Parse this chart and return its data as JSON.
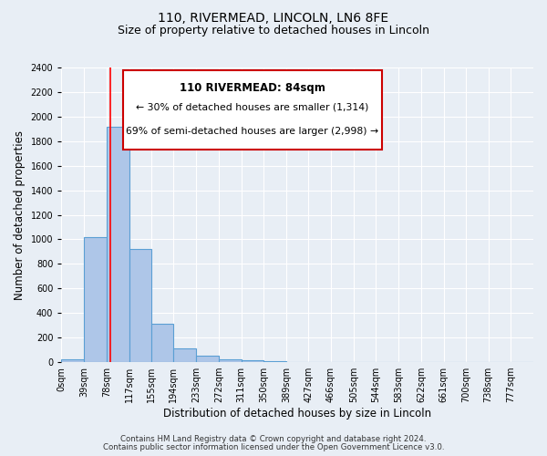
{
  "title": "110, RIVERMEAD, LINCOLN, LN6 8FE",
  "subtitle": "Size of property relative to detached houses in Lincoln",
  "xlabel": "Distribution of detached houses by size in Lincoln",
  "ylabel": "Number of detached properties",
  "bin_labels": [
    "0sqm",
    "39sqm",
    "78sqm",
    "117sqm",
    "155sqm",
    "194sqm",
    "233sqm",
    "272sqm",
    "311sqm",
    "350sqm",
    "389sqm",
    "427sqm",
    "466sqm",
    "505sqm",
    "544sqm",
    "583sqm",
    "622sqm",
    "661sqm",
    "700sqm",
    "738sqm",
    "777sqm"
  ],
  "bin_edges": [
    0,
    39,
    78,
    117,
    155,
    194,
    233,
    272,
    311,
    350,
    389,
    427,
    466,
    505,
    544,
    583,
    622,
    661,
    700,
    738,
    777,
    816
  ],
  "bar_heights": [
    20,
    1020,
    1920,
    920,
    315,
    110,
    55,
    25,
    15,
    5,
    0,
    0,
    0,
    0,
    0,
    0,
    0,
    0,
    0,
    0,
    0
  ],
  "bar_color": "#aec6e8",
  "bar_edge_color": "#5a9fd4",
  "red_line_x": 84,
  "ylim": [
    0,
    2400
  ],
  "yticks": [
    0,
    200,
    400,
    600,
    800,
    1000,
    1200,
    1400,
    1600,
    1800,
    2000,
    2200,
    2400
  ],
  "annotation_title": "110 RIVERMEAD: 84sqm",
  "annotation_line1": "← 30% of detached houses are smaller (1,314)",
  "annotation_line2": "69% of semi-detached houses are larger (2,998) →",
  "annotation_box_color": "#ffffff",
  "annotation_box_edge": "#cc0000",
  "footer1": "Contains HM Land Registry data © Crown copyright and database right 2024.",
  "footer2": "Contains public sector information licensed under the Open Government Licence v3.0.",
  "bg_color": "#e8eef5",
  "plot_bg_color": "#e8eef5",
  "title_fontsize": 10,
  "subtitle_fontsize": 9,
  "axis_label_fontsize": 8.5,
  "tick_fontsize": 7
}
